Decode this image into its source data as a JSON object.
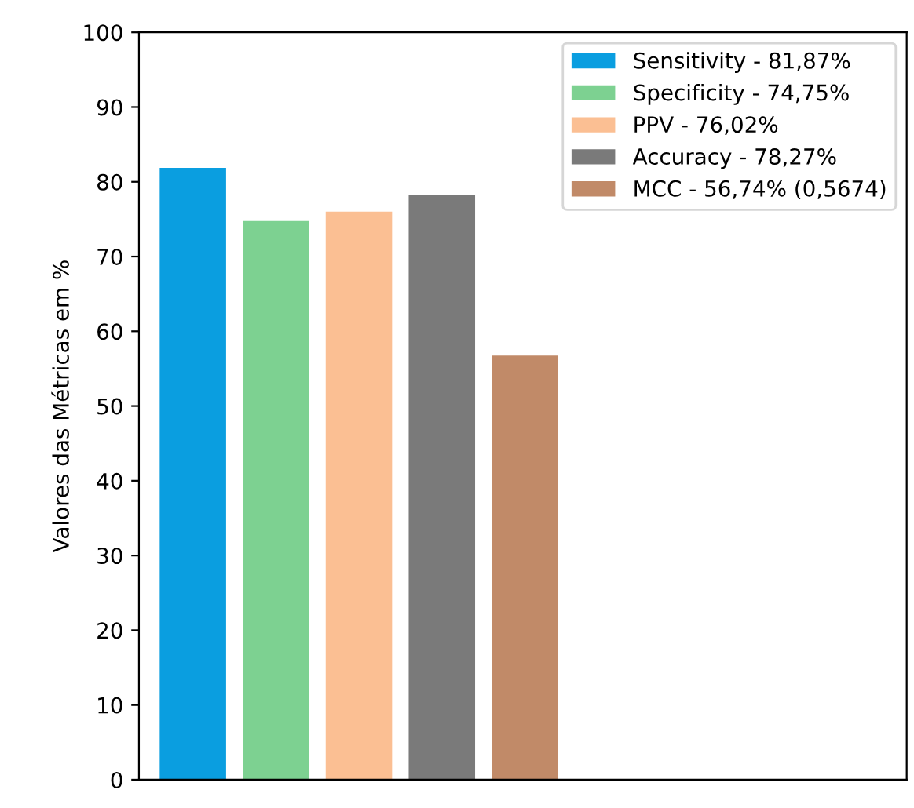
{
  "chart_data": {
    "type": "bar",
    "ylabel": "Valores das Métricas em %",
    "categories": [
      null,
      null,
      null,
      null,
      null
    ],
    "series": [
      {
        "name": "Sensitivity - 81,87%",
        "color": "#0a9ee0",
        "values": [
          81.87,
          null,
          null,
          null,
          null
        ]
      },
      {
        "name": "Specificity - 74,75%",
        "color": "#7dd191",
        "values": [
          null,
          74.75,
          null,
          null,
          null
        ]
      },
      {
        "name": "PPV - 76,02%",
        "color": "#fbbf93",
        "values": [
          null,
          null,
          76.02,
          null,
          null
        ]
      },
      {
        "name": "Accuracy - 78,27%",
        "color": "#7a7a7a",
        "values": [
          null,
          null,
          null,
          78.27,
          null
        ]
      },
      {
        "name": "MCC - 56,74% (0,5674)",
        "color": "#c18a68",
        "values": [
          null,
          null,
          null,
          null,
          56.74
        ]
      }
    ],
    "ylim": [
      0,
      100
    ],
    "yticks": [
      0,
      10,
      20,
      30,
      40,
      50,
      60,
      70,
      80,
      90,
      100
    ],
    "stacked": true,
    "legend": "top right",
    "grid": false
  }
}
